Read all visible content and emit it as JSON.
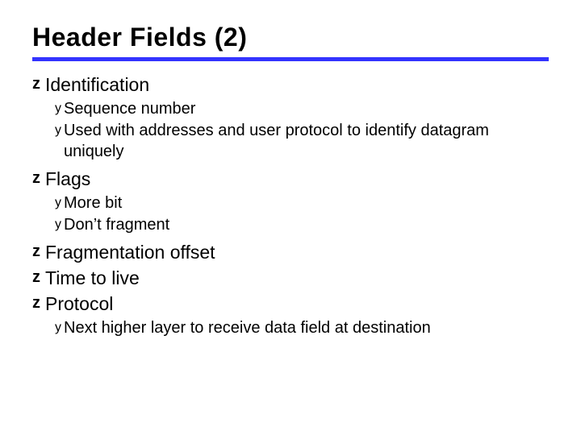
{
  "title": "Header Fields (2)",
  "rule_color": "#3333ff",
  "bullets": {
    "z_glyph": "z",
    "y_glyph": "y"
  },
  "items": [
    {
      "text": "Identification",
      "subs": [
        {
          "text": "Sequence number"
        },
        {
          "text": "Used with addresses and user protocol to identify datagram uniquely"
        }
      ]
    },
    {
      "text": "Flags",
      "subs": [
        {
          "text": "More bit"
        },
        {
          "text": "Don’t fragment"
        }
      ]
    },
    {
      "text": "Fragmentation offset",
      "subs": []
    },
    {
      "text": "Time to live",
      "subs": []
    },
    {
      "text": "Protocol",
      "subs": [
        {
          "text": "Next higher layer to receive data field at destination"
        }
      ]
    }
  ]
}
